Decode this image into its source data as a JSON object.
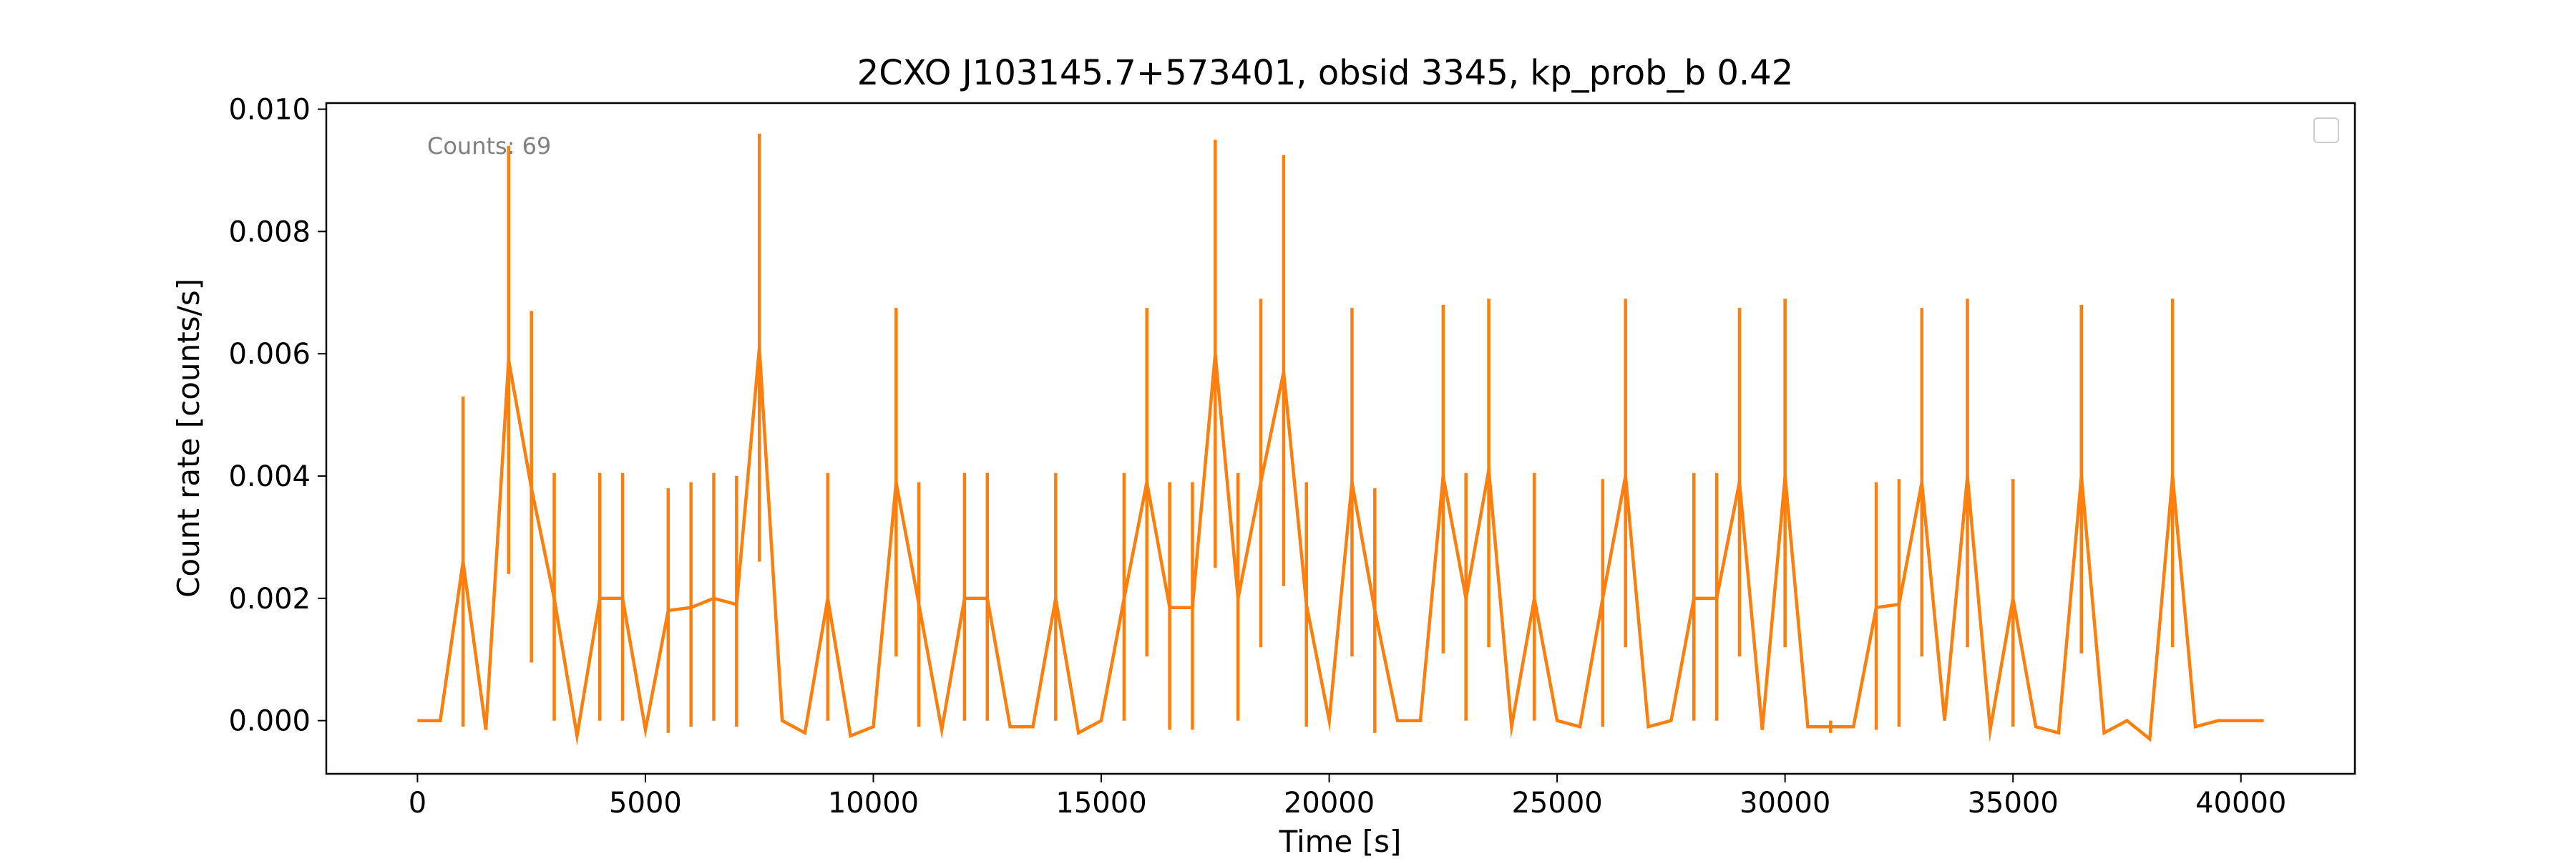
{
  "chart_data": {
    "type": "line",
    "title": "2CXO J103145.7+573401, obsid 3345, kp_prob_b 0.42",
    "xlabel": "Time [s]",
    "ylabel": "Count rate [counts/s]",
    "xlim": [
      -2000,
      42500
    ],
    "ylim": [
      -0.00087,
      0.0101
    ],
    "x_ticks": [
      0,
      5000,
      10000,
      15000,
      20000,
      25000,
      30000,
      35000,
      40000
    ],
    "y_ticks": [
      0.0,
      0.002,
      0.004,
      0.006,
      0.008,
      0.01
    ],
    "x_tick_labels": [
      "0",
      "5000",
      "10000",
      "15000",
      "20000",
      "25000",
      "30000",
      "35000",
      "40000"
    ],
    "y_tick_labels": [
      "0.000",
      "0.002",
      "0.004",
      "0.006",
      "0.008",
      "0.010"
    ],
    "grid": false,
    "legend": "top-right",
    "annotation": "Counts: 69",
    "series": [
      {
        "color": "#ff7f0e",
        "x": [
          0,
          500,
          1000,
          1500,
          2000,
          2500,
          3000,
          3500,
          4000,
          4500,
          5000,
          5500,
          6000,
          6500,
          7000,
          7500,
          8000,
          8500,
          9000,
          9500,
          10000,
          10500,
          11000,
          11500,
          12000,
          12500,
          13000,
          13500,
          14000,
          14500,
          15000,
          15500,
          16000,
          16500,
          17000,
          17500,
          18000,
          18500,
          19000,
          19500,
          20000,
          20500,
          21000,
          21500,
          22000,
          22500,
          23000,
          23500,
          24000,
          24500,
          25000,
          25500,
          26000,
          26500,
          27000,
          27500,
          28000,
          28500,
          29000,
          29500,
          30000,
          30500,
          31000,
          31500,
          32000,
          32500,
          33000,
          33500,
          34000,
          34500,
          35000,
          35500,
          36000,
          36500,
          37000,
          37500,
          38000,
          38500,
          39000,
          39500,
          40000,
          40500
        ],
        "y": [
          0,
          0,
          0.0026,
          -0.00015,
          0.0059,
          0.0038,
          0.002,
          -0.00025,
          0.002,
          0.002,
          -0.00015,
          0.0018,
          0.00185,
          0.002,
          0.0019,
          0.0061,
          0,
          -0.0002,
          0.002,
          -0.00025,
          -0.0001,
          0.0039,
          0.0019,
          -0.00015,
          0.002,
          0.002,
          -0.0001,
          -0.0001,
          0.002,
          -0.0002,
          0,
          0.002,
          0.0039,
          0.00185,
          0.00185,
          0.006,
          0.002,
          0.0039,
          0.0057,
          0.0019,
          0,
          0.0039,
          0.0018,
          0,
          0,
          0.004,
          0.002,
          0.0041,
          -0.0001,
          0.002,
          0,
          -0.0001,
          0.002,
          0.004,
          -0.0001,
          0,
          0.002,
          0.002,
          0.0039,
          -0.00015,
          0.004,
          -0.0001,
          -0.0001,
          -0.0001,
          0.00185,
          0.0019,
          0.0039,
          0,
          0.004,
          -0.00015,
          0.002,
          -0.0001,
          -0.0002,
          0.004,
          -0.0002,
          0,
          -0.0003,
          0.004,
          -0.0001,
          0,
          0,
          0
        ],
        "error_bars": [
          {
            "x": 1000,
            "low": -0.0001,
            "high": 0.0053
          },
          {
            "x": 2000,
            "low": 0.0024,
            "high": 0.0094
          },
          {
            "x": 2500,
            "low": 0.00095,
            "high": 0.0067
          },
          {
            "x": 3000,
            "low": 0,
            "high": 0.00405
          },
          {
            "x": 4000,
            "low": 0,
            "high": 0.00405
          },
          {
            "x": 4500,
            "low": 0,
            "high": 0.00405
          },
          {
            "x": 5500,
            "low": -0.0002,
            "high": 0.0038
          },
          {
            "x": 6000,
            "low": -0.0001,
            "high": 0.0039
          },
          {
            "x": 6500,
            "low": 0,
            "high": 0.00405
          },
          {
            "x": 7000,
            "low": -0.0001,
            "high": 0.004
          },
          {
            "x": 7500,
            "low": 0.0026,
            "high": 0.0096
          },
          {
            "x": 9000,
            "low": 0,
            "high": 0.00405
          },
          {
            "x": 10500,
            "low": 0.00105,
            "high": 0.00675
          },
          {
            "x": 11000,
            "low": -0.0001,
            "high": 0.0039
          },
          {
            "x": 12000,
            "low": 0,
            "high": 0.00405
          },
          {
            "x": 12500,
            "low": 0,
            "high": 0.00405
          },
          {
            "x": 14000,
            "low": 0,
            "high": 0.00405
          },
          {
            "x": 15500,
            "low": 0,
            "high": 0.00405
          },
          {
            "x": 16000,
            "low": 0.00105,
            "high": 0.00675
          },
          {
            "x": 16500,
            "low": -0.00015,
            "high": 0.0039
          },
          {
            "x": 17000,
            "low": -0.00015,
            "high": 0.0039
          },
          {
            "x": 17500,
            "low": 0.0025,
            "high": 0.0095
          },
          {
            "x": 18000,
            "low": 0,
            "high": 0.00405
          },
          {
            "x": 18500,
            "low": 0.0012,
            "high": 0.0069
          },
          {
            "x": 19000,
            "low": 0.0022,
            "high": 0.00925
          },
          {
            "x": 19500,
            "low": -0.0001,
            "high": 0.0039
          },
          {
            "x": 20500,
            "low": 0.00105,
            "high": 0.00675
          },
          {
            "x": 21000,
            "low": -0.0002,
            "high": 0.0038
          },
          {
            "x": 22500,
            "low": 0.0011,
            "high": 0.0068
          },
          {
            "x": 23000,
            "low": 0,
            "high": 0.00405
          },
          {
            "x": 23500,
            "low": 0.0012,
            "high": 0.0069
          },
          {
            "x": 24500,
            "low": 0,
            "high": 0.00405
          },
          {
            "x": 26000,
            "low": -0.0001,
            "high": 0.00395
          },
          {
            "x": 26500,
            "low": 0.0012,
            "high": 0.0069
          },
          {
            "x": 28000,
            "low": 0,
            "high": 0.00405
          },
          {
            "x": 28500,
            "low": 0,
            "high": 0.00405
          },
          {
            "x": 29000,
            "low": 0.00105,
            "high": 0.00675
          },
          {
            "x": 30000,
            "low": 0.0012,
            "high": 0.0069
          },
          {
            "x": 31000,
            "low": -0.0002,
            "high": 0
          },
          {
            "x": 32000,
            "low": -0.00015,
            "high": 0.0039
          },
          {
            "x": 32500,
            "low": -0.0001,
            "high": 0.00395
          },
          {
            "x": 33000,
            "low": 0.00105,
            "high": 0.00675
          },
          {
            "x": 34000,
            "low": 0.0012,
            "high": 0.0069
          },
          {
            "x": 35000,
            "low": -0.0001,
            "high": 0.00395
          },
          {
            "x": 36500,
            "low": 0.0011,
            "high": 0.0068
          },
          {
            "x": 38500,
            "low": 0.0012,
            "high": 0.0069
          }
        ]
      }
    ]
  }
}
